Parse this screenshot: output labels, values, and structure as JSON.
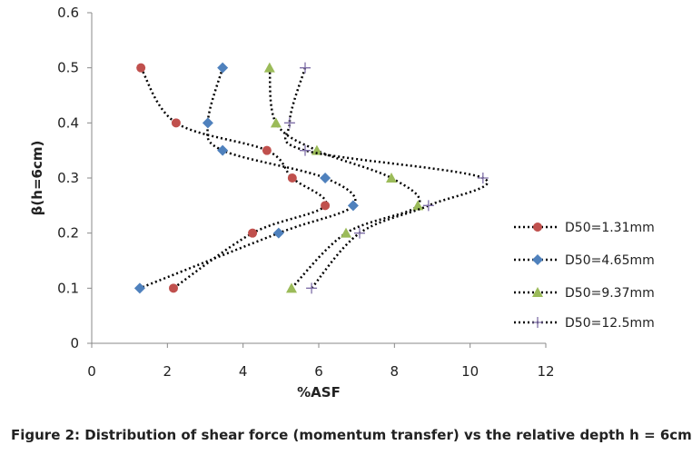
{
  "chart_data": {
    "type": "line",
    "xlabel": "%ASF",
    "ylabel": "β(h=6cm)",
    "xlim": [
      0,
      12
    ],
    "ylim": [
      0,
      0.6
    ],
    "xticks": [
      0,
      2,
      4,
      6,
      8,
      10,
      12
    ],
    "yticks": [
      0,
      0.1,
      0.2,
      0.3,
      0.4,
      0.5,
      0.6
    ],
    "grid": false,
    "legend_position": "right",
    "series": [
      {
        "name": "D50=1.31mm",
        "marker": "circle",
        "color": "#c0504d",
        "x": [
          1.3,
          2.23,
          4.63,
          5.3,
          6.17,
          4.25,
          2.16
        ],
        "y": [
          0.5,
          0.4,
          0.35,
          0.3,
          0.25,
          0.2,
          0.1
        ]
      },
      {
        "name": "D50=4.65mm",
        "marker": "diamond",
        "color": "#4f81bd",
        "x": [
          3.46,
          3.07,
          3.46,
          6.17,
          6.91,
          4.94,
          1.27
        ],
        "y": [
          0.5,
          0.4,
          0.35,
          0.3,
          0.25,
          0.2,
          0.1
        ]
      },
      {
        "name": "D50=9.37mm",
        "marker": "triangle",
        "color": "#9bbb59",
        "x": [
          4.7,
          4.87,
          5.95,
          7.92,
          8.62,
          6.72,
          5.28
        ],
        "y": [
          0.5,
          0.4,
          0.35,
          0.3,
          0.25,
          0.2,
          0.1
        ]
      },
      {
        "name": "D50=12.5mm",
        "marker": "plus",
        "color": "#7f6fa8",
        "x": [
          5.64,
          5.23,
          5.64,
          10.34,
          8.9,
          7.08,
          5.81
        ],
        "y": [
          0.5,
          0.4,
          0.35,
          0.3,
          0.25,
          0.2,
          0.1
        ]
      }
    ]
  },
  "caption": "Figure 2: Distribution of shear force (momentum transfer) vs the relative depth h = 6cm"
}
